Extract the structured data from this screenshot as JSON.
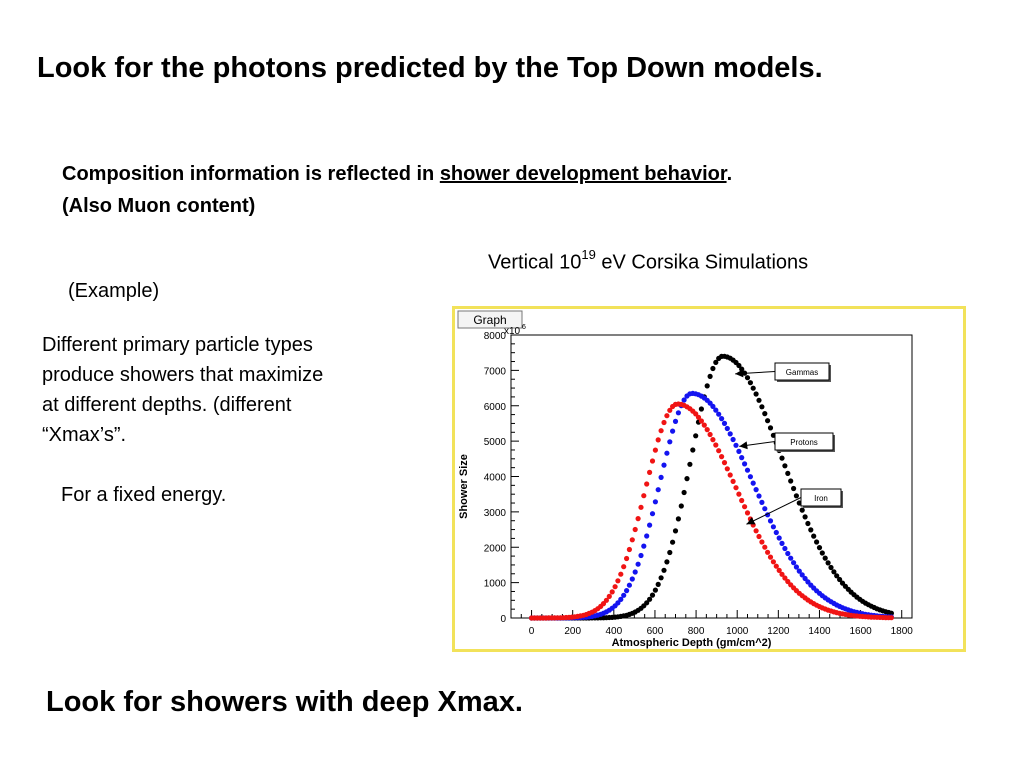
{
  "slide": {
    "title": "Look for the photons predicted by the Top Down models.",
    "composition_line_prefix": "Composition information is reflected in ",
    "composition_line_underlined": "shower development behavior",
    "composition_line_suffix": ".",
    "composition_line2": "(Also Muon content)",
    "sim_caption_prefix": "Vertical 10",
    "sim_caption_exponent": "19",
    "sim_caption_suffix": " eV Corsika Simulations",
    "example": "(Example)",
    "description_lines": [
      "Different primary particle types",
      "produce showers that maximize",
      "at different depths. (different",
      "“Xmax’s”."
    ],
    "fixed_energy": "For a fixed energy.",
    "bottom_text": "Look for showers with deep Xmax."
  },
  "chart_data": {
    "type": "scatter",
    "tab_label": "Graph",
    "xlabel": "Atmospheric Depth (gm/cm^2)",
    "ylabel": "Shower Size",
    "y_multiplier_label": "x10",
    "y_multiplier_exponent": "6",
    "xlim": [
      -100,
      1850
    ],
    "ylim": [
      0,
      8000
    ],
    "x_ticks": [
      0,
      200,
      400,
      600,
      800,
      1000,
      1200,
      1400,
      1600,
      1800
    ],
    "y_ticks": [
      0,
      1000,
      2000,
      3000,
      4000,
      5000,
      6000,
      7000,
      8000
    ],
    "series": [
      {
        "name": "Gammas",
        "color": "#000000",
        "peak_x": 930,
        "peak_y": 7400,
        "sigma_left": 155,
        "sigma_right": 290,
        "x_start": 0,
        "x_end": 1760
      },
      {
        "name": "Protons",
        "color": "#1414f0",
        "peak_x": 780,
        "peak_y": 6350,
        "sigma_left": 155,
        "sigma_right": 295,
        "x_start": 0,
        "x_end": 1760
      },
      {
        "name": "Iron",
        "color": "#f01414",
        "peak_x": 710,
        "peak_y": 6050,
        "sigma_left": 155,
        "sigma_right": 285,
        "x_start": 0,
        "x_end": 1760
      }
    ],
    "legend_boxes": [
      {
        "label": "Gammas",
        "arrow_to_x": 990,
        "arrow_to_y": 6900
      },
      {
        "label": "Protons",
        "arrow_to_x": 1010,
        "arrow_to_y": 4850
      },
      {
        "label": "Iron",
        "arrow_to_x": 1045,
        "arrow_to_y": 2650
      }
    ]
  }
}
